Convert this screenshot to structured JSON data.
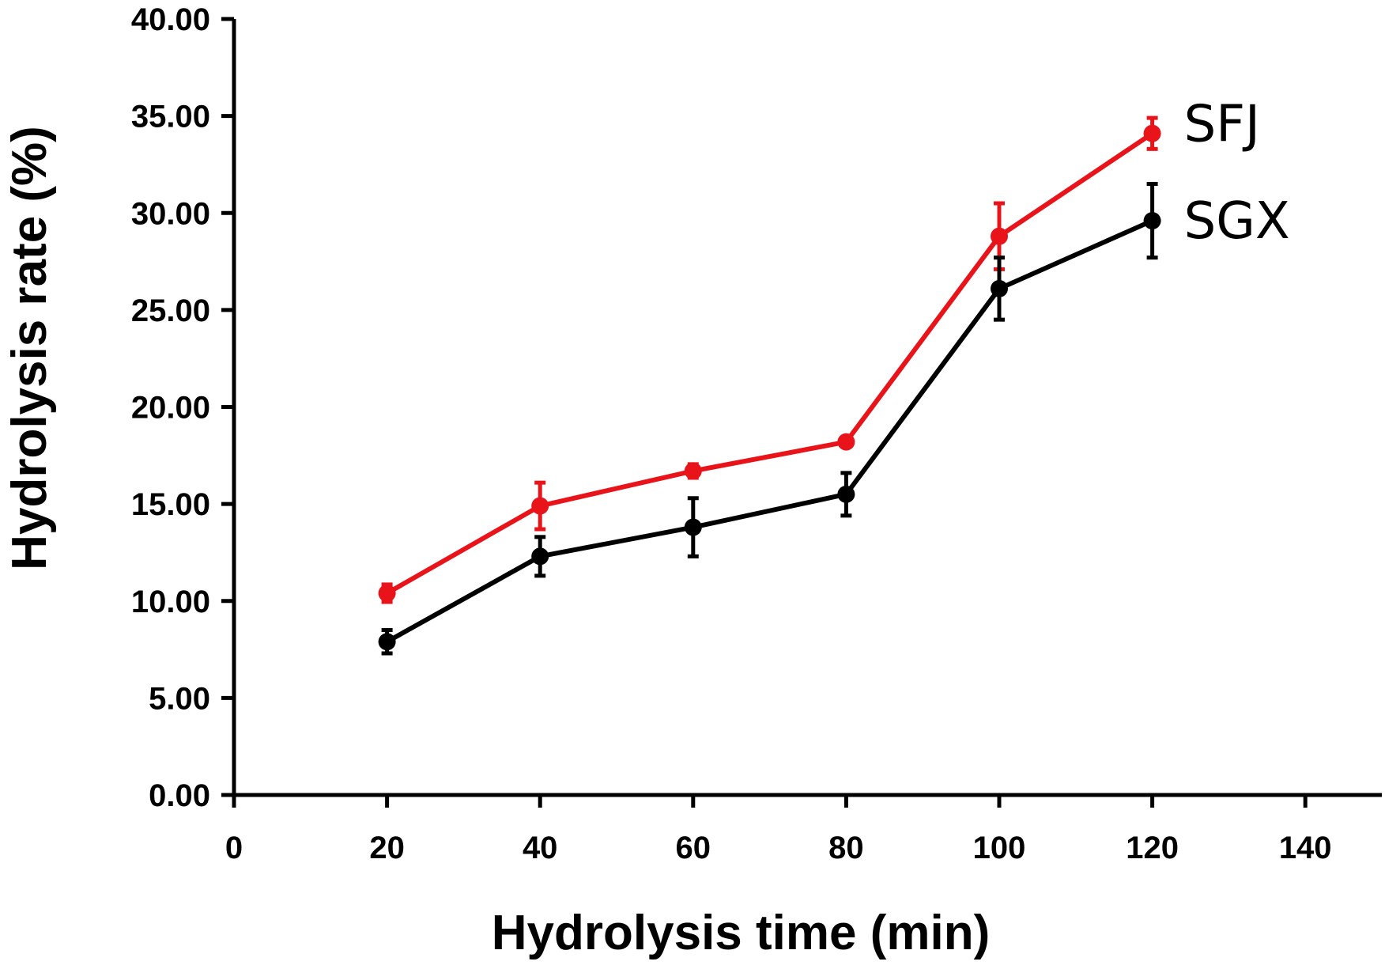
{
  "chart_data": {
    "type": "line",
    "xlabel": "Hydrolysis time (min)",
    "ylabel": "Hydrolysis rate (%)",
    "xlim": [
      0,
      150
    ],
    "ylim": [
      0,
      40
    ],
    "x_ticks": [
      0,
      20,
      40,
      60,
      80,
      100,
      120,
      140
    ],
    "x_tick_labels": [
      "0",
      "20",
      "40",
      "60",
      "80",
      "100",
      "120",
      "140"
    ],
    "y_ticks": [
      0,
      5,
      10,
      15,
      20,
      25,
      30,
      35,
      40
    ],
    "y_tick_labels": [
      "0.00",
      "5.00",
      "10.00",
      "15.00",
      "20.00",
      "25.00",
      "30.00",
      "35.00",
      "40.00"
    ],
    "grid": false,
    "legend": "inline labels at right end of lines",
    "x": [
      20,
      40,
      60,
      80,
      100,
      120
    ],
    "series": [
      {
        "name": "SFJ",
        "color": "#e8141a",
        "values": [
          10.4,
          14.9,
          16.7,
          18.2,
          28.8,
          34.1
        ],
        "errors": [
          0.45,
          1.2,
          0.35,
          0.2,
          1.7,
          0.8
        ]
      },
      {
        "name": "SGX",
        "color": "#000000",
        "values": [
          7.9,
          12.3,
          13.8,
          15.5,
          26.1,
          29.6
        ],
        "errors": [
          0.6,
          1.0,
          1.5,
          1.1,
          1.6,
          1.9
        ]
      }
    ]
  }
}
